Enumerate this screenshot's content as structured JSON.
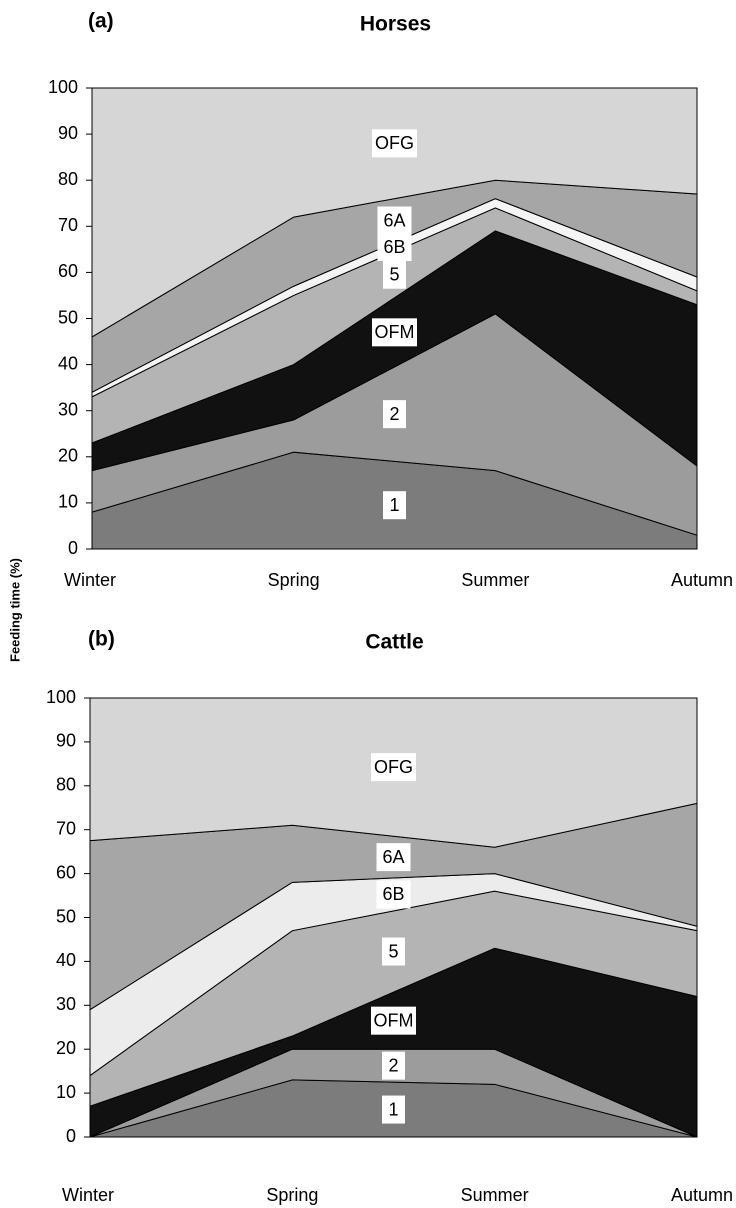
{
  "y_axis_label": "Feeding time (%)",
  "chart_data": [
    {
      "type": "stacked_area",
      "panel": "(a)",
      "title": "Horses",
      "categories": [
        "Winter",
        "Spring",
        "Summer",
        "Autumn"
      ],
      "ylim": [
        0,
        100
      ],
      "yticks": [
        0,
        10,
        20,
        30,
        40,
        50,
        60,
        70,
        80,
        90,
        100
      ],
      "series": [
        {
          "name": "1",
          "color": "#7c7c7c",
          "values": [
            8,
            21,
            17,
            3
          ]
        },
        {
          "name": "2",
          "color": "#9c9c9c",
          "values": [
            9,
            7,
            34,
            15
          ]
        },
        {
          "name": "OFM",
          "color": "#111111",
          "values": [
            6,
            12,
            18,
            35
          ]
        },
        {
          "name": "5",
          "color": "#b4b4b4",
          "values": [
            10,
            15,
            5,
            3
          ]
        },
        {
          "name": "6B",
          "color": "#f4f4f4",
          "values": [
            1,
            2,
            2,
            3
          ]
        },
        {
          "name": "6A",
          "color": "#a6a6a6",
          "values": [
            12,
            15,
            4,
            18
          ]
        },
        {
          "name": "OFG",
          "color": "#d6d6d6",
          "values": [
            54,
            28,
            20,
            23
          ]
        }
      ]
    },
    {
      "type": "stacked_area",
      "panel": "(b)",
      "title": "Cattle",
      "categories": [
        "Winter",
        "Spring",
        "Summer",
        "Autumn"
      ],
      "ylim": [
        0,
        100
      ],
      "yticks": [
        0,
        10,
        20,
        30,
        40,
        50,
        60,
        70,
        80,
        90,
        100
      ],
      "series": [
        {
          "name": "1",
          "color": "#7c7c7c",
          "values": [
            0,
            13,
            12,
            0
          ]
        },
        {
          "name": "2",
          "color": "#9c9c9c",
          "values": [
            0,
            7,
            8,
            0
          ]
        },
        {
          "name": "OFM",
          "color": "#111111",
          "values": [
            7,
            3,
            23,
            32
          ]
        },
        {
          "name": "5",
          "color": "#b4b4b4",
          "values": [
            7,
            24,
            13,
            15
          ]
        },
        {
          "name": "6B",
          "color": "#ececec",
          "values": [
            15,
            11,
            4,
            1
          ]
        },
        {
          "name": "6A",
          "color": "#a6a6a6",
          "values": [
            38.5,
            13,
            6,
            28
          ]
        },
        {
          "name": "OFG",
          "color": "#d6d6d6",
          "values": [
            32.5,
            29,
            34,
            24
          ]
        }
      ]
    }
  ]
}
